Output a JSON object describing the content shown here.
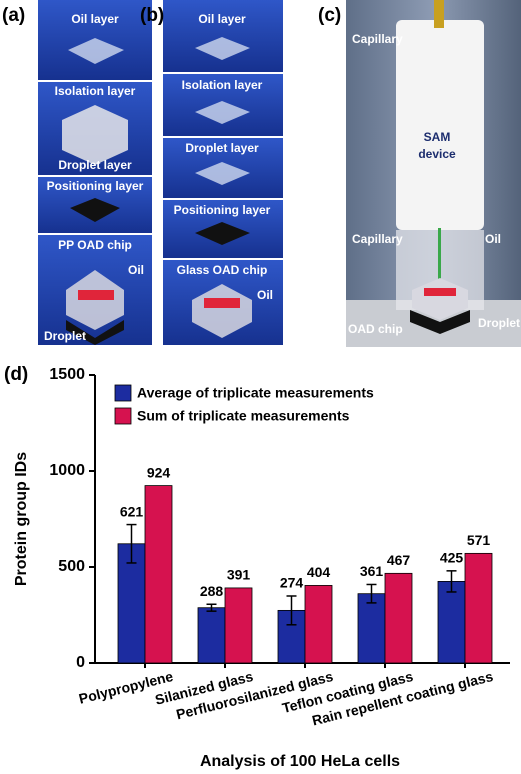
{
  "panels": [
    {
      "label": "(a)",
      "texts": [
        "Oil layer",
        "Isolation layer",
        "Droplet layer",
        "Positioning layer",
        "PP OAD chip",
        "Oil",
        "Droplet"
      ]
    },
    {
      "label": "(b)",
      "texts": [
        "Oil layer",
        "Isolation layer",
        "Droplet layer",
        "Positioning layer",
        "Glass OAD chip",
        "Oil"
      ]
    },
    {
      "label": "(c)",
      "texts": [
        "Capillary",
        "SAM",
        "device",
        "Capillary",
        "Oil",
        "OAD chip",
        "Droplet"
      ]
    }
  ],
  "chart_data": {
    "type": "bar",
    "panel_label": "(d)",
    "y_label": "Protein group IDs",
    "x_label": "Analysis of 100 HeLa cells",
    "categories": [
      "Polypropylene",
      "Silanized glass",
      "Perfluorosilanized glass",
      "Teflon coating glass",
      "Rain repellent coating glass"
    ],
    "series": [
      {
        "name": "Average of triplicate measurements",
        "color": "#1c2ca0",
        "values": [
          621,
          288,
          274,
          361,
          425
        ],
        "errors": [
          100,
          18,
          75,
          48,
          55
        ]
      },
      {
        "name": "Sum of triplicate measurements",
        "color": "#d6124f",
        "values": [
          924,
          391,
          404,
          467,
          571
        ]
      }
    ],
    "ylim": [
      0,
      1500
    ],
    "yticks": [
      0,
      500,
      1000,
      1500
    ],
    "legend": "upper left"
  }
}
